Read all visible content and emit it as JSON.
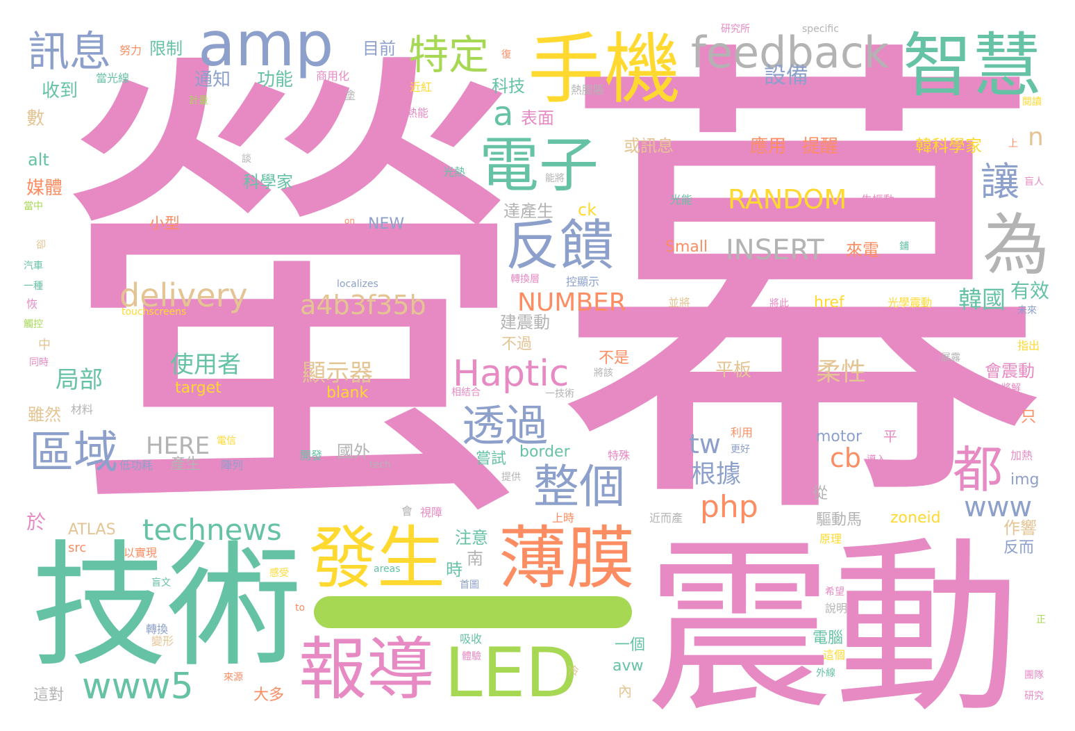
{
  "palette": {
    "pink": "#e78ac3",
    "blue": "#8da0cb",
    "green": "#66c2a5",
    "yellow": "#ffd92f",
    "orange": "#fc8d62",
    "lime": "#a6d854",
    "tan": "#e5c494",
    "gray": "#b3b3b3"
  },
  "words": {
    "ying": "螢",
    "mu": "幕",
    "zhendong": "震動",
    "jishu": "技術",
    "dash": "一",
    "shouji": "手機",
    "zhihui": "智慧",
    "amp": "amp",
    "feedback": "feedback",
    "xunxi": "訊息",
    "teding": "特定",
    "dianzi": "電子",
    "fankui": "反饋",
    "wei": "為",
    "fasheng": "發生",
    "baomo": "薄膜",
    "baodao": "報導",
    "led": "LED",
    "quyu": "區域",
    "haptic": "Haptic",
    "touguo": "透過",
    "zhengge": "整個",
    "dou": "都",
    "delivery": "delivery",
    "a4b3f35b": "a4b3f35b",
    "technews": "technews",
    "www5": "www5",
    "insert": "INSERT",
    "random": "RANDOM",
    "number": "NUMBER",
    "rang": "讓",
    "a": "a",
    "www": "www",
    "php": "php",
    "tw": "tw",
    "cb": "cb",
    "shebei": "設備",
    "yingyong": "應用",
    "tixing": "提醒",
    "hanguo": "韓國",
    "youxiao": "有效",
    "shiyongzhe": "使用者",
    "xianshiqi": "顯示器",
    "juebu": "局部",
    "here": "HERE",
    "genju": "根據",
    "rouxing": "柔性",
    "pingban": "平板",
    "hanguokexuejia": "韓科學家",
    "n": "n",
    "xianzhi": "限制",
    "mubiao": "目前",
    "tongzhi": "通知",
    "gongneng": "功能",
    "shoudao": "收到",
    "keji": "科技",
    "biaomian": "表面",
    "huoxunxi": "或訊息",
    "kexuejia": "科學家",
    "meiti": "媒體",
    "shu": "數",
    "alt": "alt",
    "xiaoxing": "小型",
    "new": "NEW",
    "dachansheng": "達產生",
    "ck": "ck",
    "small": "Small",
    "laidian": "來電",
    "jianzhendong": "建震動",
    "buguo": "不過",
    "bushi": "不是",
    "huizhendong": "會震動",
    "target": "target",
    "blank": "blank",
    "href": "href",
    "guangxuezhendong": "光學震動",
    "motor": "motor",
    "ping": "平",
    "border": "border",
    "changshi": "嘗試",
    "chansheng": "產生",
    "guowai": "國外",
    "suiran": "雖然",
    "yu": "於",
    "atlas": "ATLAS",
    "zhuyi": "注意",
    "nan": "南",
    "shi": "時",
    "zoneid": "zoneid",
    "qudongma": "驅動馬",
    "zuoxiang": "作響",
    "fanner": "反而",
    "yige": "一個",
    "avw": "avw",
    "dianzhao": "電腦",
    "img": "img",
    "zhi": "只",
    "cong": "從",
    "src": "src",
    "dadou": "大多",
    "nei": "內",
    "zhedui": "這對",
    "specific": "specific",
    "yanjiusuo": "研究所",
    "nuli": "努力",
    "fu": "復",
    "shangyonghua": "商用化",
    "dangguangxian": "當光線",
    "jinhong": "近紅",
    "jiliang": "計量",
    "tu": "塗",
    "reneng": "熱能",
    "repengzhang": "熱膨脹",
    "yuedu": "閱讀",
    "tan": "談",
    "guangre": "光熱",
    "nengjiang": "能將",
    "guangneng": "光能",
    "shengzhendong": "生振動",
    "on": "on",
    "dangzhong": "當中",
    "que": "卻",
    "qiche": "汽車",
    "yizhong": "一種",
    "hui": "恢",
    "chukong": "觸控",
    "zhong": "中",
    "tongshi": "同時",
    "localizes": "localizes",
    "touchscreens": "touchscreens",
    "zhuanhuanceng": "轉換層",
    "kongxianshi": "控顯示",
    "bingjiang": "並將",
    "jiangci": "將此",
    "shang": "上",
    "mangren": "盲人",
    "weilai": "未來",
    "zhichu": "指出",
    "zhanlu": "展露",
    "jiangjie": "將解",
    "jiangqi": "將該",
    "xianghehe": "相結合",
    "yijishu": "一技術",
    "cailiao": "材料",
    "dianxin": "電信",
    "liyong": "利用",
    "gengguo": "更好",
    "daoru": "導入",
    "kaifa": "開發",
    "tech": "tech",
    "teshu": "特殊",
    "jiare": "加熱",
    "digonghao": "低功耗",
    "zhenlie": "陣列",
    "tigong": "提供",
    "hui2": "會",
    "shizhang": "視障",
    "shangshi": "上時",
    "jinerchan": "近而產",
    "pu": "鋪",
    "yuanli": "原理",
    "yishixian": "以實現",
    "areas": "areas",
    "mangwen": "盲文",
    "ganshou": "感受",
    "shouye": "首圖",
    "to": "to",
    "shuoming": "說明",
    "xiwang": "希望",
    "zheng": "正",
    "zhuanhuan": "轉換",
    "bianxing": "變形",
    "xishou": "吸收",
    "tiyan": "體驗",
    "leng": "冷",
    "laiyuan": "來源",
    "zhege": "這個",
    "waixian": "外線",
    "tuandui": "團隊",
    "yanjiu": "研究"
  }
}
